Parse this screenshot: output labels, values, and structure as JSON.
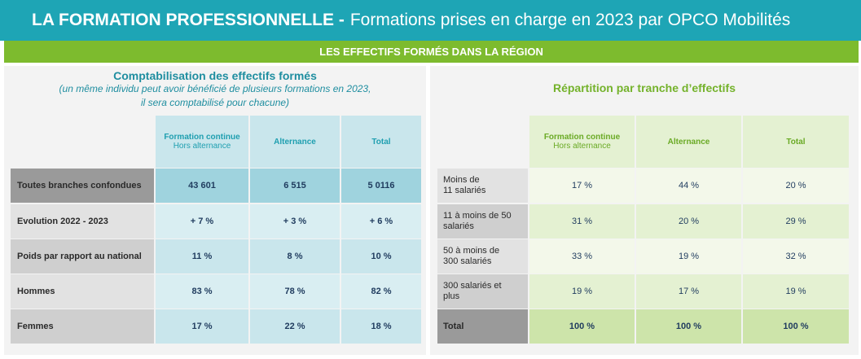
{
  "header": {
    "title_bold": "LA FORMATION PROFESSIONNELLE -",
    "title_rest": "Formations prises en charge en 2023 par OPCO Mobilités",
    "subtitle": "LES EFFECTIFS FORMÉS DANS LA RÉGION"
  },
  "left": {
    "heading": "Comptabilisation des effectifs formés",
    "note_line1": "(un même individu peut avoir bénéficié de plusieurs formations en 2023,",
    "note_line2": "il sera comptabilisé pour chacune)",
    "columns": [
      {
        "label": "Formation continue",
        "sub": "Hors alternance"
      },
      {
        "label": "Alternance",
        "sub": ""
      },
      {
        "label": "Total",
        "sub": ""
      }
    ],
    "rows": [
      {
        "label": "Toutes branches confondues",
        "values": [
          "43 601",
          "6 515",
          "5 0116"
        ]
      },
      {
        "label": "Evolution 2022 - 2023",
        "values": [
          "+ 7 %",
          "+ 3 %",
          "+ 6 %"
        ]
      },
      {
        "label": "Poids par rapport au national",
        "values": [
          "11 %",
          "8 %",
          "10 %"
        ]
      },
      {
        "label": "Hommes",
        "values": [
          "83 %",
          "78 %",
          "82 %"
        ]
      },
      {
        "label": "Femmes",
        "values": [
          "17 %",
          "22 %",
          "18 %"
        ]
      }
    ]
  },
  "right": {
    "heading": "Répartition par tranche d’effectifs",
    "columns": [
      {
        "label": "Formation continue",
        "sub": "Hors alternance"
      },
      {
        "label": "Alternance",
        "sub": ""
      },
      {
        "label": "Total",
        "sub": ""
      }
    ],
    "rows": [
      {
        "label_line1": "Moins de",
        "label_line2": "11 salariés",
        "values": [
          "17 %",
          "44 %",
          "20 %"
        ]
      },
      {
        "label_line1": "11 à moins de 50",
        "label_line2": "salariés",
        "values": [
          "31 %",
          "20 %",
          "29 %"
        ]
      },
      {
        "label_line1": "50 à moins de",
        "label_line2": "300 salariés",
        "values": [
          "33 %",
          "19 %",
          "32 %"
        ]
      },
      {
        "label_line1": "300 salariés et",
        "label_line2": "plus",
        "values": [
          "19 %",
          "17 %",
          "19 %"
        ]
      },
      {
        "label_line1": "Total",
        "label_line2": "",
        "values": [
          "100 %",
          "100 %",
          "100 %"
        ]
      }
    ]
  }
}
